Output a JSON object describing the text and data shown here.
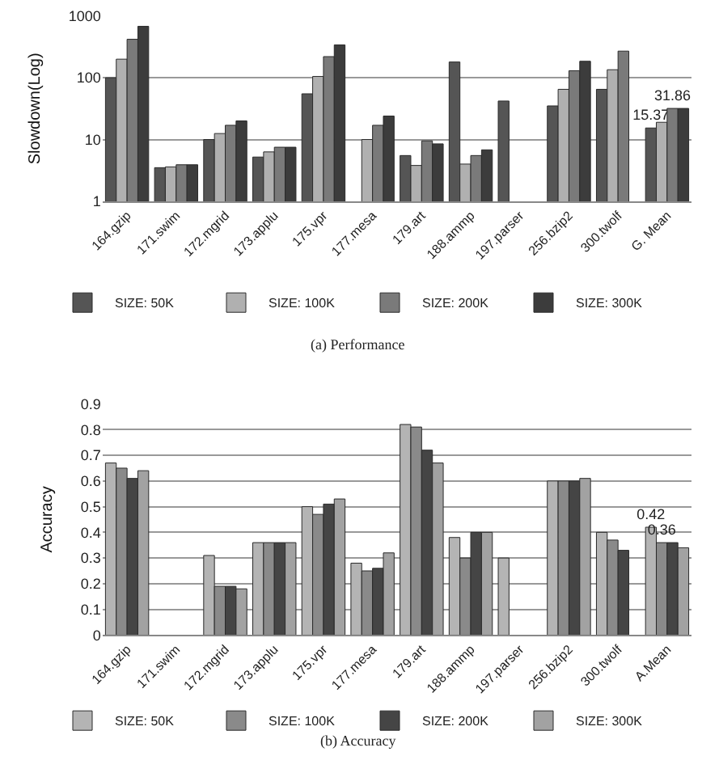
{
  "chart_data": [
    {
      "type": "bar",
      "ylabel": "Slowdown(Log)",
      "log": true,
      "ylim": [
        1,
        1000
      ],
      "yticks": [
        1,
        10,
        100,
        1000
      ],
      "grid": "y",
      "legend": "bottom",
      "categories": [
        "164.gzip",
        "171.swim",
        "172.mgrid",
        "173.applu",
        "175.vpr",
        "177.mesa",
        "179.art",
        "188.ammp",
        "197.parser",
        "256.bzip2",
        "300.twolf",
        "G. Mean"
      ],
      "series": [
        {
          "name": "SIZE: 50K",
          "color": "#555555",
          "values": [
            100,
            3.5,
            10,
            5.2,
            55,
            null,
            5.5,
            180,
            42,
            35,
            65,
            15.37
          ],
          "value_labels": [
            null,
            null,
            null,
            null,
            null,
            null,
            null,
            null,
            null,
            null,
            null,
            "15.37"
          ]
        },
        {
          "name": "SIZE: 100K",
          "color": "#b0b0b0",
          "values": [
            200,
            3.6,
            12.5,
            6.3,
            105,
            10,
            3.8,
            4,
            null,
            65,
            135,
            19
          ]
        },
        {
          "name": "SIZE: 200K",
          "color": "#7a7a7a",
          "values": [
            420,
            3.9,
            17,
            7.5,
            220,
            17,
            9.5,
            5.5,
            null,
            130,
            270,
            31.86
          ],
          "value_labels": [
            null,
            null,
            null,
            null,
            null,
            null,
            null,
            null,
            null,
            null,
            null,
            "31.86"
          ]
        },
        {
          "name": "SIZE: 300K",
          "color": "#3c3c3c",
          "values": [
            680,
            3.9,
            20,
            7.5,
            340,
            24,
            8.5,
            6.8,
            null,
            185,
            null,
            31.86
          ]
        }
      ],
      "annotations": [
        "(a) Performance"
      ]
    },
    {
      "type": "bar",
      "ylabel": "Accuracy",
      "ylim": [
        0,
        0.9
      ],
      "yticks": [
        0,
        0.1,
        0.2,
        0.3,
        0.4,
        0.5,
        0.6,
        0.7,
        0.8,
        0.9
      ],
      "grid": "y",
      "legend": "bottom",
      "categories": [
        "164.gzip",
        "171.swim",
        "172.mgrid",
        "173.applu",
        "175.vpr",
        "177.mesa",
        "179.art",
        "188.ammp",
        "197.parser",
        "256.bzip2",
        "300.twolf",
        "A.Mean"
      ],
      "series": [
        {
          "name": "SIZE: 50K",
          "color": "#b4b4b4",
          "values": [
            0.67,
            null,
            0.31,
            0.36,
            0.5,
            0.28,
            0.82,
            0.38,
            0.3,
            0.6,
            0.4,
            0.42
          ],
          "value_labels": [
            null,
            null,
            null,
            null,
            null,
            null,
            null,
            null,
            null,
            null,
            null,
            "0.42"
          ]
        },
        {
          "name": "SIZE: 100K",
          "color": "#8a8a8a",
          "values": [
            0.65,
            null,
            0.19,
            0.36,
            0.47,
            0.25,
            0.81,
            0.3,
            null,
            0.6,
            0.37,
            0.36
          ],
          "value_labels": [
            null,
            null,
            null,
            null,
            null,
            null,
            null,
            null,
            null,
            null,
            null,
            "0.36"
          ]
        },
        {
          "name": "SIZE: 200K",
          "color": "#454545",
          "values": [
            0.61,
            null,
            0.19,
            0.36,
            0.51,
            0.26,
            0.72,
            0.4,
            null,
            0.6,
            0.33,
            0.36
          ]
        },
        {
          "name": "SIZE: 300K",
          "color": "#a2a2a2",
          "values": [
            0.64,
            null,
            0.18,
            0.36,
            0.53,
            0.32,
            0.67,
            0.4,
            null,
            0.61,
            null,
            0.34
          ]
        }
      ],
      "annotations": [
        "(b) Accuracy"
      ]
    }
  ]
}
